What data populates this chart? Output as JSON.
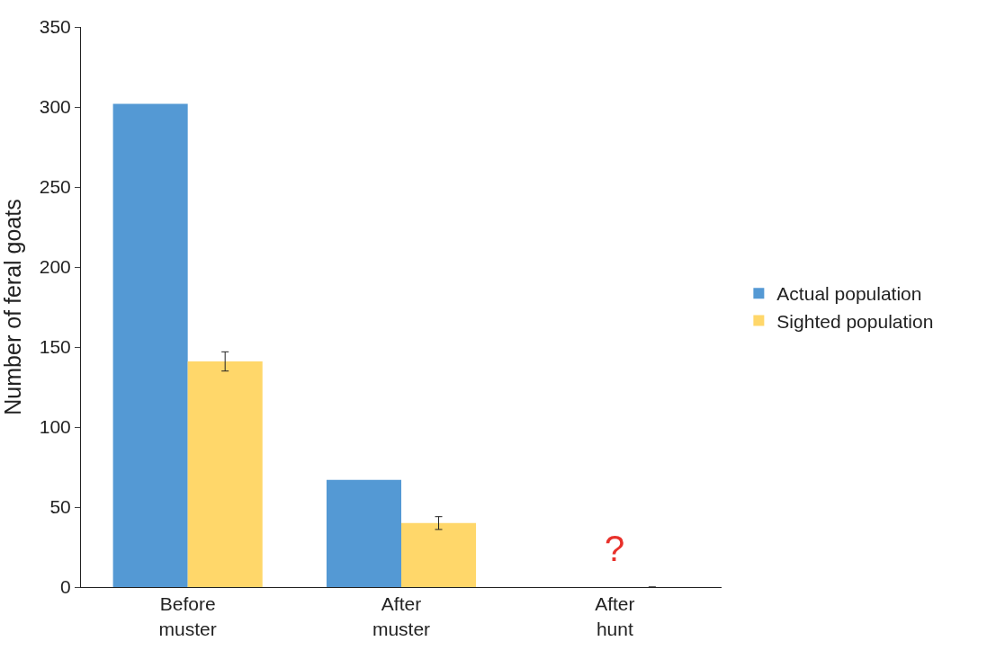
{
  "chart_data": {
    "type": "bar",
    "ylabel": "Number of feral goats",
    "categories": [
      "Before\nmuster",
      "After\nmuster",
      "After\nhunt"
    ],
    "series": [
      {
        "name": "Actual population",
        "color": "#5499d4",
        "values": [
          302,
          67,
          null
        ]
      },
      {
        "name": "Sighted population",
        "color": "#ffd76a",
        "values": [
          141,
          40,
          0
        ],
        "errors": [
          6,
          4,
          null
        ]
      }
    ],
    "ylim": [
      0,
      350
    ],
    "yticks": [
      0,
      50,
      100,
      150,
      200,
      250,
      300,
      350
    ],
    "legend": "right",
    "annotations": [
      "?"
    ]
  }
}
